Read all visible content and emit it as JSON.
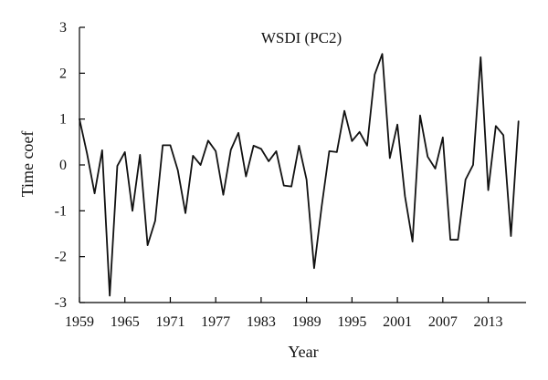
{
  "chart_data": {
    "type": "line",
    "title": "WSDI (PC2)",
    "xlabel": "Year",
    "ylabel": "Time coef",
    "xlim": [
      1959,
      2018
    ],
    "ylim": [
      -3,
      3
    ],
    "xticks": [
      1959,
      1965,
      1971,
      1977,
      1983,
      1989,
      1995,
      2001,
      2007,
      2013
    ],
    "yticks": [
      -3,
      -2,
      -1,
      0,
      1,
      2,
      3
    ],
    "grid": false,
    "legend": "none",
    "color": "#111111",
    "x": [
      1959,
      1960,
      1961,
      1962,
      1963,
      1964,
      1965,
      1966,
      1967,
      1968,
      1969,
      1970,
      1971,
      1972,
      1973,
      1974,
      1975,
      1976,
      1977,
      1978,
      1979,
      1980,
      1981,
      1982,
      1983,
      1984,
      1985,
      1986,
      1987,
      1988,
      1989,
      1990,
      1991,
      1992,
      1993,
      1994,
      1995,
      1996,
      1997,
      1998,
      1999,
      2000,
      2001,
      2002,
      2003,
      2004,
      2005,
      2006,
      2007,
      2008,
      2009,
      2010,
      2011,
      2012,
      2013,
      2014,
      2015,
      2016,
      2017
    ],
    "y": [
      1.0,
      0.25,
      -0.62,
      0.32,
      -2.85,
      -0.02,
      0.28,
      -1.0,
      0.22,
      -1.75,
      -1.22,
      0.43,
      0.43,
      -0.12,
      -1.05,
      0.2,
      0.0,
      0.53,
      0.3,
      -0.65,
      0.33,
      0.7,
      -0.25,
      0.42,
      0.35,
      0.08,
      0.3,
      -0.45,
      -0.47,
      0.42,
      -0.32,
      -2.25,
      -0.9,
      0.3,
      0.28,
      1.18,
      0.52,
      0.72,
      0.42,
      1.97,
      2.42,
      0.15,
      0.88,
      -0.68,
      -1.67,
      1.08,
      0.18,
      -0.08,
      0.6,
      -1.63,
      -1.63,
      -0.32,
      0.0,
      2.35,
      -0.55,
      0.85,
      0.65,
      -1.55,
      0.95
    ]
  }
}
